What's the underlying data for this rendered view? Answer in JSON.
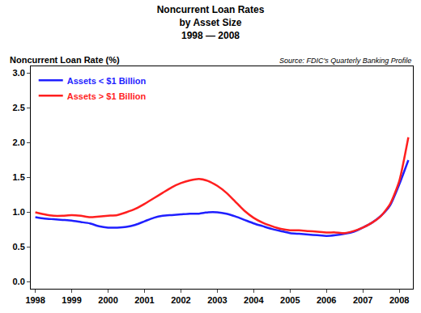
{
  "chart_data": {
    "type": "line",
    "title": [
      "Noncurrent Loan Rates",
      "by Asset Size",
      "1998 — 2008"
    ],
    "y_label": "Noncurrent Loan Rate (%)",
    "annotation": "Source: FDIC's Quarterly Banking Profile",
    "categories": [
      "1998",
      null,
      null,
      null,
      "1999",
      null,
      null,
      null,
      "2000",
      null,
      null,
      null,
      "2001",
      null,
      null,
      null,
      "2002",
      null,
      null,
      null,
      "2003",
      null,
      null,
      null,
      "2004",
      null,
      null,
      null,
      "2005",
      null,
      null,
      null,
      "2006",
      null,
      null,
      null,
      "2007",
      null,
      null,
      null,
      "2008",
      null
    ],
    "series": [
      {
        "name": "Assets < $1 Billion",
        "color": "#1f1fff",
        "values": [
          0.93,
          0.91,
          0.9,
          0.89,
          0.88,
          0.86,
          0.84,
          0.8,
          0.78,
          0.78,
          0.79,
          0.82,
          0.87,
          0.92,
          0.95,
          0.96,
          0.97,
          0.98,
          0.98,
          1.0,
          1.0,
          0.98,
          0.94,
          0.89,
          0.84,
          0.8,
          0.76,
          0.73,
          0.7,
          0.69,
          0.68,
          0.67,
          0.66,
          0.67,
          0.69,
          0.72,
          0.78,
          0.85,
          0.95,
          1.1,
          1.4,
          1.75
        ]
      },
      {
        "name": "Assets > $1 Billion",
        "color": "#ff1f1f",
        "values": [
          1.0,
          0.97,
          0.95,
          0.95,
          0.96,
          0.95,
          0.93,
          0.94,
          0.95,
          0.96,
          1.0,
          1.05,
          1.12,
          1.2,
          1.28,
          1.36,
          1.42,
          1.46,
          1.48,
          1.45,
          1.38,
          1.28,
          1.15,
          1.02,
          0.92,
          0.85,
          0.8,
          0.76,
          0.74,
          0.74,
          0.73,
          0.72,
          0.71,
          0.71,
          0.7,
          0.73,
          0.78,
          0.85,
          0.95,
          1.12,
          1.45,
          2.08
        ]
      }
    ],
    "ylim": [
      -0.1,
      3.1
    ],
    "yticks": [
      {
        "value": 0,
        "label": "0.0"
      },
      0.5,
      {
        "value": 1,
        "label": "1.0"
      },
      1.5,
      {
        "value": 2,
        "label": "2.0"
      },
      2.5,
      {
        "value": 3,
        "label": "3.0"
      }
    ],
    "grid": false,
    "legend": "upper left"
  }
}
